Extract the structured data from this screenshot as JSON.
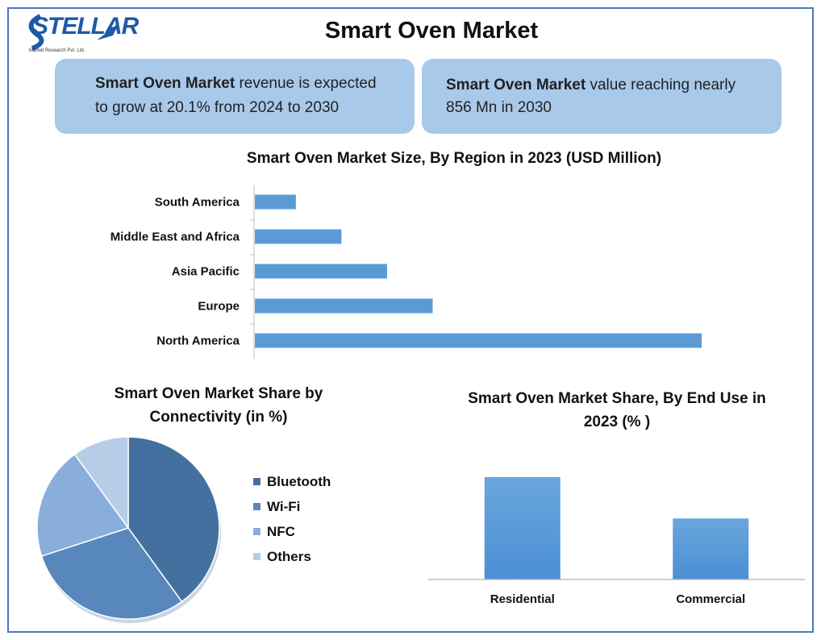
{
  "header": {
    "logo_text": "STELLAR",
    "logo_sub": "Market Research Pvt. Ltd.",
    "title": "Smart Oven Market"
  },
  "info": {
    "left_bold": "Smart Oven Market",
    "left_line1_rest": " revenue is expected",
    "left_line2": "to grow at 20.1% from 2024 to 2030",
    "right_bold": "Smart Oven Market",
    "right_line1_rest": " value reaching nearly",
    "right_line2": "856 Mn in 2030"
  },
  "colors": {
    "bar": "#5b9bd5",
    "frame": "#4a7ab8",
    "info_box": "#a9c9ea"
  },
  "chart_data": [
    {
      "type": "bar",
      "orientation": "horizontal",
      "title": "Smart Oven Market Size, By Region in 2023 (USD Million)",
      "categories": [
        "South America",
        "Middle East and Africa",
        "Asia Pacific",
        "Europe",
        "North America"
      ],
      "values": [
        9,
        19,
        29,
        39,
        98
      ],
      "xlim": [
        0,
        100
      ],
      "grid": false,
      "legend": "none"
    },
    {
      "type": "pie",
      "title": "Smart Oven Market Share by Connectivity (in %)",
      "labels": [
        "Bluetooth",
        "Wi-Fi",
        "NFC",
        "Others"
      ],
      "values": [
        40,
        30,
        20,
        10
      ],
      "colors": [
        "#44709f",
        "#5887bb",
        "#8aaedb",
        "#b6cde8"
      ],
      "legend": "right"
    },
    {
      "type": "bar",
      "title": "Smart Oven Market Share, By End Use in 2023 (% )",
      "categories": [
        "Residential",
        "Commercial"
      ],
      "values": [
        62,
        37
      ],
      "ylim": [
        0,
        100
      ],
      "grid": false,
      "legend": "none"
    }
  ]
}
